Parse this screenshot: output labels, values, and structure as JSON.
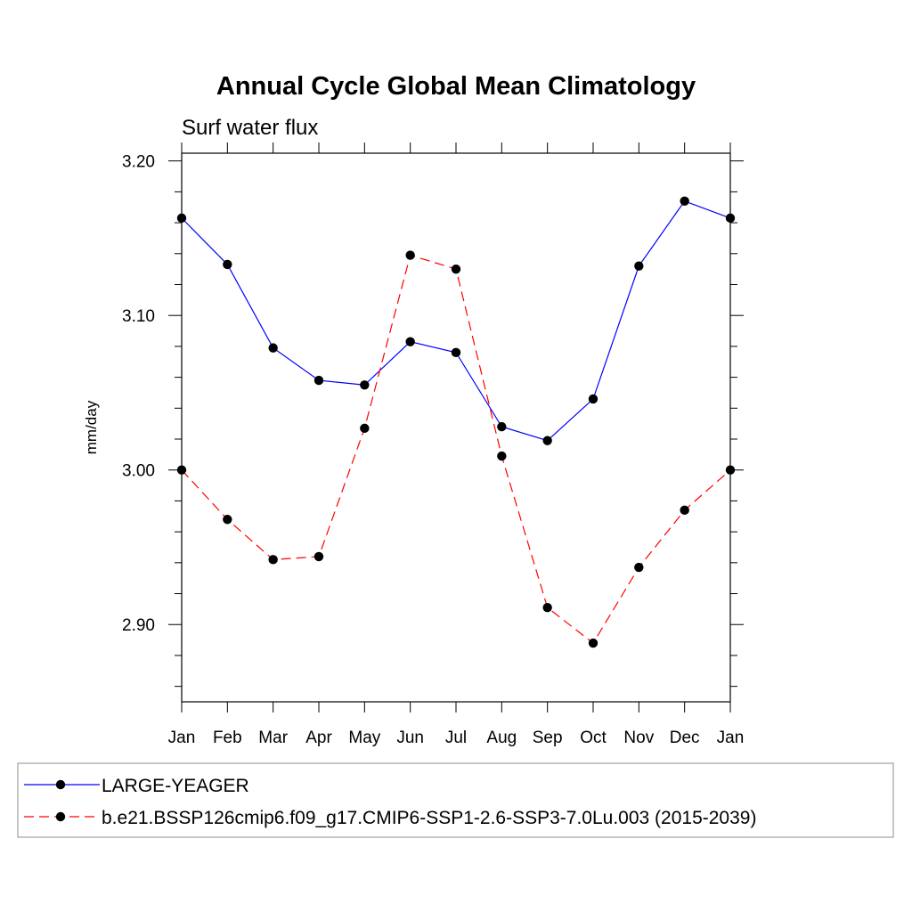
{
  "chart_data": {
    "type": "line",
    "title": "Annual Cycle Global Mean Climatology",
    "subtitle": "Surf water flux",
    "xlabel": "",
    "ylabel": "mm/day",
    "categories": [
      "Jan",
      "Feb",
      "Mar",
      "Apr",
      "May",
      "Jun",
      "Jul",
      "Aug",
      "Sep",
      "Oct",
      "Nov",
      "Dec",
      "Jan"
    ],
    "ylim": [
      2.85,
      3.205
    ],
    "yticks": [
      2.9,
      3.0,
      3.1,
      3.2
    ],
    "ytick_labels": [
      "2.90",
      "3.00",
      "3.10",
      "3.20"
    ],
    "y_minor_step": 0.02,
    "grid": false,
    "legend_position": "bottom",
    "series": [
      {
        "name": "LARGE-YEAGER",
        "color": "#0000ff",
        "dash": "solid",
        "marker": "circle",
        "values": [
          3.163,
          3.133,
          3.079,
          3.058,
          3.055,
          3.083,
          3.076,
          3.028,
          3.019,
          3.046,
          3.132,
          3.174,
          3.163
        ]
      },
      {
        "name": "b.e21.BSSP126cmip6.f09_g17.CMIP6-SSP1-2.6-SSP3-7.0Lu.003 (2015-2039)",
        "color": "#ff0000",
        "dash": "dashed",
        "marker": "circle",
        "values": [
          3.0,
          2.968,
          2.942,
          2.944,
          3.027,
          3.139,
          3.13,
          3.009,
          2.911,
          2.888,
          2.937,
          2.974,
          3.0
        ]
      }
    ]
  }
}
